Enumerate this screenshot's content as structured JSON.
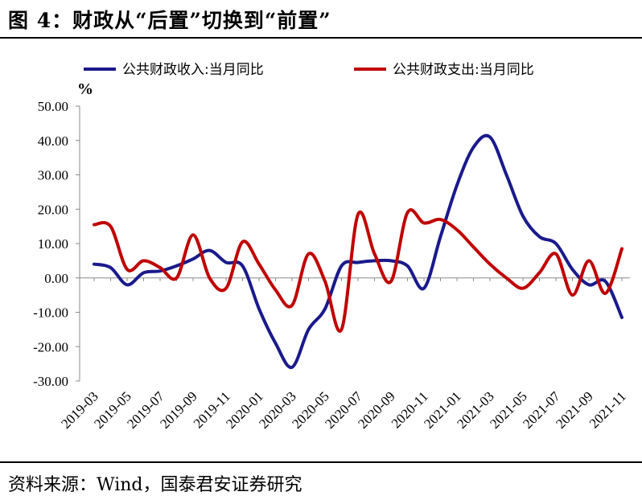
{
  "header": {
    "title": "图 4：财政从“后置”切换到“前置”"
  },
  "footer": {
    "source": "资料来源：Wind，国泰君安证券研究"
  },
  "chart_data": {
    "type": "line",
    "unit": "%",
    "ylim": [
      -30,
      50
    ],
    "yticks": [
      "50.00",
      "40.00",
      "30.00",
      "20.00",
      "10.00",
      "0.00",
      "-10.00",
      "-20.00",
      "-30.00"
    ],
    "ytick_values": [
      50,
      40,
      30,
      20,
      10,
      0,
      -10,
      -20,
      -30
    ],
    "categories": [
      "2019-03",
      "2019-04",
      "2019-05",
      "2019-06",
      "2019-07",
      "2019-08",
      "2019-09",
      "2019-10",
      "2019-11",
      "2019-12",
      "2020-01",
      "2020-02",
      "2020-03",
      "2020-04",
      "2020-05",
      "2020-06",
      "2020-07",
      "2020-08",
      "2020-09",
      "2020-10",
      "2020-11",
      "2020-12",
      "2021-01",
      "2021-02",
      "2021-03",
      "2021-04",
      "2021-05",
      "2021-06",
      "2021-07",
      "2021-08",
      "2021-09",
      "2021-10",
      "2021-11"
    ],
    "xtick_labels": [
      "2019-03",
      "2019-05",
      "2019-07",
      "2019-09",
      "2019-11",
      "2020-01",
      "2020-03",
      "2020-05",
      "2020-07",
      "2020-09",
      "2020-11",
      "2021-01",
      "2021-03",
      "2021-05",
      "2021-07",
      "2021-09",
      "2021-11"
    ],
    "grid": false,
    "legend_position": "top",
    "series": [
      {
        "name": "公共财政收入:当月同比",
        "color": "#1a1a8c",
        "values": [
          4.0,
          3.0,
          -2.0,
          1.5,
          2.0,
          3.5,
          5.5,
          8.0,
          4.5,
          3.5,
          -9.0,
          -19.0,
          -26.0,
          -15.0,
          -9.0,
          3.5,
          4.5,
          5.0,
          5.0,
          3.5,
          -3.0,
          12.0,
          27.0,
          38.0,
          41.0,
          30.0,
          18.0,
          12.0,
          10.0,
          2.5,
          -2.0,
          -1.0,
          -11.5
        ]
      },
      {
        "name": "公共财政支出:当月同比",
        "color": "#c00000",
        "values": [
          15.5,
          15.0,
          2.5,
          5.0,
          3.0,
          0.0,
          12.5,
          0.0,
          -3.0,
          10.5,
          4.0,
          -3.5,
          -8.0,
          7.0,
          -1.0,
          -15.0,
          18.5,
          7.0,
          -1.0,
          19.0,
          16.0,
          17.0,
          14.0,
          9.0,
          4.0,
          0.0,
          -3.0,
          1.5,
          7.0,
          -5.0,
          5.0,
          -4.5,
          8.5
        ]
      }
    ]
  }
}
